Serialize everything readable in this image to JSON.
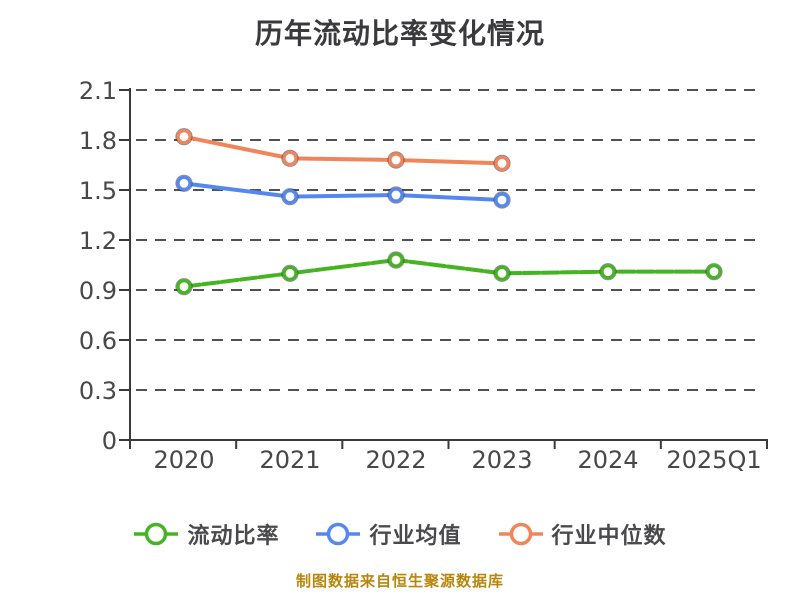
{
  "chart_data": {
    "type": "line",
    "title": "历年流动比率变化情况",
    "categories": [
      "2020",
      "2021",
      "2022",
      "2023",
      "2024",
      "2025Q1"
    ],
    "series": [
      {
        "name": "流动比率",
        "color": "#44b520",
        "line_style": "dashed",
        "marker": "circle-white-fill",
        "values": [
          0.92,
          1.0,
          1.08,
          1.0,
          1.01,
          1.01
        ]
      },
      {
        "name": "行业均值",
        "color": "#5488f0",
        "line_style": "solid",
        "marker": "circle-white-fill",
        "values": [
          1.54,
          1.46,
          1.47,
          1.44,
          null,
          null
        ]
      },
      {
        "name": "行业中位数",
        "color": "#f0855c",
        "line_style": "solid",
        "marker": "circle-white-fill",
        "values": [
          1.82,
          1.69,
          1.68,
          1.66,
          null,
          null
        ]
      }
    ],
    "xlabel": "",
    "ylabel": "",
    "ylim": [
      0,
      2.1
    ],
    "yticks": [
      0,
      0.3,
      0.6,
      0.9,
      1.2,
      1.5,
      1.8,
      2.1
    ],
    "grid": "horizontal-dashed",
    "legend_position": "bottom"
  },
  "footer": {
    "text": "制图数据来自恒生聚源数据库"
  },
  "colors": {
    "background": "#ffffff",
    "title_text": "#3a3a3c",
    "axis": "#3a3a3c",
    "tick_label": "#48484a",
    "grid": "#515155",
    "legend_text": "#4a4a4c",
    "footer_text": "#b8860b"
  }
}
